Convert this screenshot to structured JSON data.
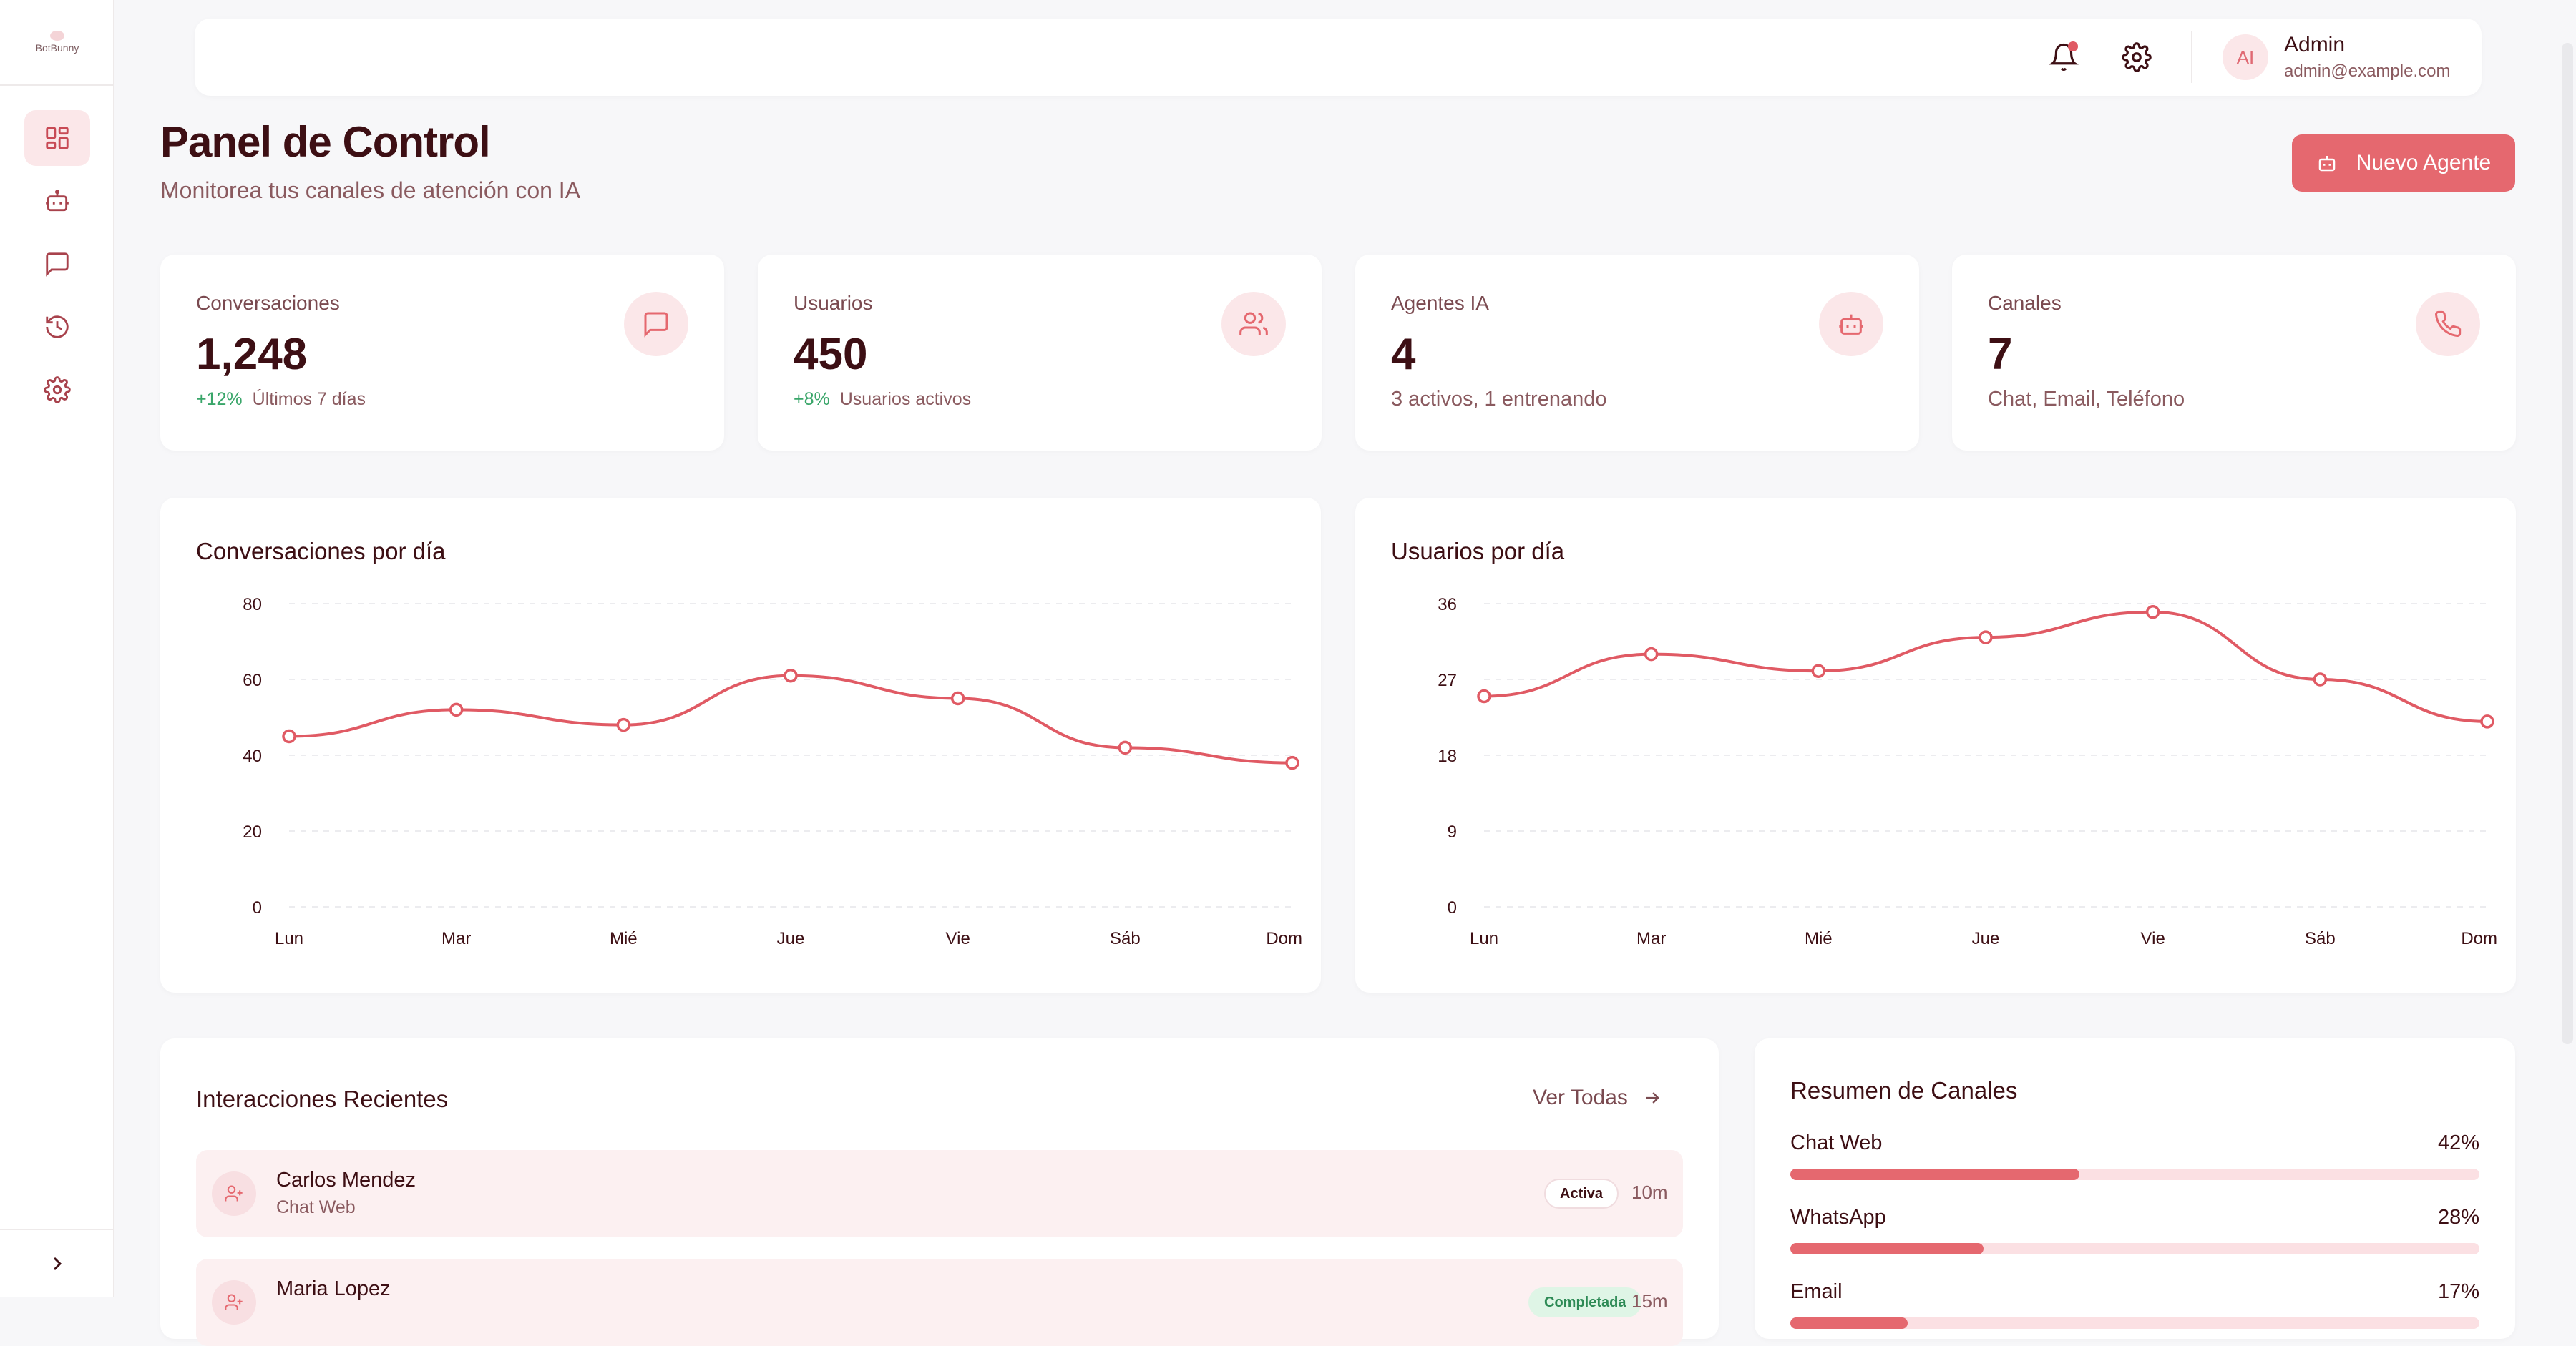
{
  "app": {
    "logo_text": "BotBunny"
  },
  "colors": {
    "accent": "#e5686f",
    "accent_soft": "#fbe7e9",
    "text_dark": "#3d0f14",
    "muted": "#8a5a5f",
    "positive": "#3aa66a"
  },
  "sidebar": {
    "items": [
      {
        "icon": "dashboard-icon",
        "active": true
      },
      {
        "icon": "bot-icon",
        "active": false
      },
      {
        "icon": "message-icon",
        "active": false
      },
      {
        "icon": "history-icon",
        "active": false
      },
      {
        "icon": "gear-icon",
        "active": false
      }
    ],
    "collapse_icon": "chevron-right-icon"
  },
  "topbar": {
    "user": {
      "initials": "AI",
      "name": "Admin",
      "email": "admin@example.com"
    }
  },
  "header": {
    "title": "Panel de Control",
    "subtitle": "Monitorea tus canales de atención con IA",
    "new_agent_label": "Nuevo Agente"
  },
  "stats": [
    {
      "label": "Conversaciones",
      "value": "1,248",
      "trend": "+12%",
      "sub": "Últimos 7 días",
      "icon": "message-icon"
    },
    {
      "label": "Usuarios",
      "value": "450",
      "trend": "+8%",
      "sub": "Usuarios activos",
      "icon": "users-icon"
    },
    {
      "label": "Agentes IA",
      "value": "4",
      "trend": null,
      "sub": "3 activos, 1 entrenando",
      "icon": "bot-icon"
    },
    {
      "label": "Canales",
      "value": "7",
      "trend": null,
      "sub": "Chat, Email, Teléfono",
      "icon": "phone-icon"
    }
  ],
  "chart_data": [
    {
      "type": "line",
      "title": "Conversaciones por día",
      "categories": [
        "Lun",
        "Mar",
        "Mié",
        "Jue",
        "Vie",
        "Sáb",
        "Dom"
      ],
      "values": [
        45,
        52,
        48,
        61,
        55,
        42,
        38
      ],
      "ylim": [
        0,
        80
      ],
      "yticks": [
        0,
        20,
        40,
        60,
        80
      ],
      "xlabel": "",
      "ylabel": "",
      "grid": true
    },
    {
      "type": "line",
      "title": "Usuarios por día",
      "categories": [
        "Lun",
        "Mar",
        "Mié",
        "Jue",
        "Vie",
        "Sáb",
        "Dom"
      ],
      "values": [
        25,
        30,
        28,
        32,
        35,
        27,
        22
      ],
      "ylim": [
        0,
        36
      ],
      "yticks": [
        0,
        9,
        18,
        27,
        36
      ],
      "xlabel": "",
      "ylabel": "",
      "grid": true
    }
  ],
  "recent": {
    "title": "Interacciones Recientes",
    "view_all_label": "Ver Todas",
    "items": [
      {
        "name": "Carlos Mendez",
        "channel": "Chat Web",
        "status": "Activa",
        "time": "10m"
      },
      {
        "name": "Maria Lopez",
        "channel": "",
        "status": "Completada",
        "time": "15m"
      }
    ]
  },
  "channels": {
    "title": "Resumen de Canales",
    "items": [
      {
        "name": "Chat Web",
        "pct_label": "42%",
        "pct": 42
      },
      {
        "name": "WhatsApp",
        "pct_label": "28%",
        "pct": 28
      },
      {
        "name": "Email",
        "pct_label": "17%",
        "pct": 17
      }
    ]
  }
}
